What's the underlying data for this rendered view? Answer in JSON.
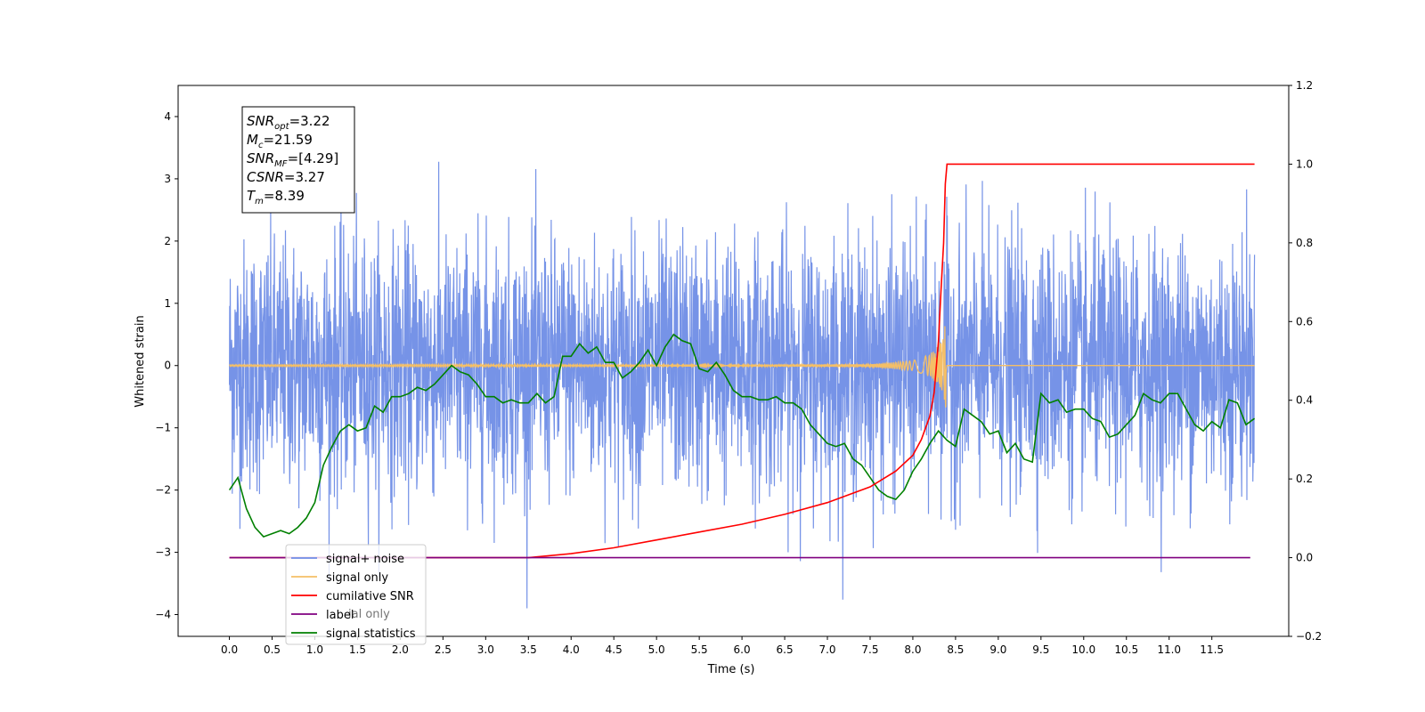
{
  "chart_data": {
    "type": "line",
    "xlabel": "Time (s)",
    "ylabel": "Whitened strain",
    "xlim": [
      -0.6,
      12.4
    ],
    "ylim": [
      -4.35,
      4.5
    ],
    "y2lim": [
      -0.2,
      1.2
    ],
    "x_ticks": [
      "0.0",
      "0.5",
      "1.0",
      "1.5",
      "2.0",
      "2.5",
      "3.0",
      "3.5",
      "4.0",
      "4.5",
      "5.0",
      "5.5",
      "6.0",
      "6.5",
      "7.0",
      "7.5",
      "8.0",
      "8.5",
      "9.0",
      "9.5",
      "10.0",
      "10.5",
      "11.0",
      "11.5"
    ],
    "y_ticks": [
      "4",
      "3",
      "2",
      "1",
      "0",
      "−1",
      "−2",
      "−3",
      "−4"
    ],
    "y2_ticks": [
      "1.2",
      "1.0",
      "0.8",
      "0.6",
      "0.4",
      "0.2",
      "0.0",
      "−0.2"
    ],
    "grid": false,
    "legend_position": "lower-left",
    "series": [
      {
        "name": "signal+ noise",
        "color": "#6f8de6",
        "axis": "left",
        "note_data": "dense whitened noise, std ~1, clipped range about -3.9 to 4.1, t from 0 to 12"
      },
      {
        "name": "signal only",
        "color": "#f5bf66",
        "axis": "left",
        "x": [
          0,
          7.5,
          8.0,
          8.2,
          8.3,
          8.36,
          8.39,
          8.4,
          12
        ],
        "envelope": [
          0.01,
          0.02,
          0.08,
          0.18,
          0.32,
          0.55,
          0.72,
          0.0,
          0.0
        ]
      },
      {
        "name": "cumilative SNR",
        "color": "#ff0000",
        "axis": "right",
        "x": [
          0,
          3.5,
          4.0,
          4.5,
          5.0,
          5.5,
          6.0,
          6.5,
          7.0,
          7.5,
          7.8,
          8.0,
          8.1,
          8.2,
          8.25,
          8.3,
          8.33,
          8.36,
          8.38,
          8.4,
          12.0
        ],
        "y": [
          0.0,
          0.0,
          0.01,
          0.025,
          0.045,
          0.065,
          0.085,
          0.11,
          0.14,
          0.18,
          0.22,
          0.26,
          0.3,
          0.36,
          0.42,
          0.55,
          0.68,
          0.8,
          0.95,
          1.0,
          1.0
        ]
      },
      {
        "name": "label",
        "color": "#800080",
        "axis": "right",
        "x": [
          0,
          11.95
        ],
        "y": [
          0.0,
          0.0
        ]
      },
      {
        "name": "signal statistics",
        "color": "#008000",
        "axis": "left",
        "x": [
          0.0,
          0.1,
          0.2,
          0.3,
          0.4,
          0.5,
          0.6,
          0.7,
          0.8,
          0.9,
          1.0,
          1.1,
          1.2,
          1.3,
          1.4,
          1.5,
          1.6,
          1.7,
          1.8,
          1.9,
          2.0,
          2.1,
          2.2,
          2.3,
          2.4,
          2.5,
          2.6,
          2.7,
          2.8,
          2.9,
          3.0,
          3.1,
          3.2,
          3.3,
          3.4,
          3.5,
          3.6,
          3.7,
          3.8,
          3.9,
          4.0,
          4.1,
          4.2,
          4.3,
          4.4,
          4.5,
          4.6,
          4.7,
          4.8,
          4.9,
          5.0,
          5.1,
          5.2,
          5.3,
          5.4,
          5.5,
          5.6,
          5.7,
          5.8,
          5.9,
          6.0,
          6.1,
          6.2,
          6.3,
          6.4,
          6.5,
          6.6,
          6.7,
          6.8,
          6.9,
          7.0,
          7.1,
          7.2,
          7.3,
          7.4,
          7.5,
          7.6,
          7.7,
          7.8,
          7.9,
          8.0,
          8.1,
          8.2,
          8.3,
          8.4,
          8.5,
          8.6,
          8.7,
          8.8,
          8.9,
          9.0,
          9.1,
          9.2,
          9.3,
          9.4,
          9.5,
          9.6,
          9.7,
          9.8,
          9.9,
          10.0,
          10.1,
          10.2,
          10.3,
          10.4,
          10.5,
          10.6,
          10.7,
          10.8,
          10.9,
          11.0,
          11.1,
          11.2,
          11.3,
          11.4,
          11.5,
          11.6,
          11.7,
          11.8,
          11.9,
          12.0
        ],
        "y": [
          -2.0,
          -1.8,
          -2.3,
          -2.6,
          -2.75,
          -2.7,
          -2.65,
          -2.7,
          -2.6,
          -2.45,
          -2.2,
          -1.6,
          -1.3,
          -1.05,
          -0.95,
          -1.05,
          -1.0,
          -0.65,
          -0.75,
          -0.5,
          -0.5,
          -0.45,
          -0.35,
          -0.4,
          -0.3,
          -0.15,
          0.0,
          -0.1,
          -0.15,
          -0.3,
          -0.5,
          -0.5,
          -0.6,
          -0.55,
          -0.6,
          -0.6,
          -0.45,
          -0.6,
          -0.5,
          0.15,
          0.15,
          0.35,
          0.2,
          0.3,
          0.05,
          0.05,
          -0.2,
          -0.1,
          0.05,
          0.25,
          0.0,
          0.3,
          0.5,
          0.4,
          0.35,
          -0.05,
          -0.1,
          0.05,
          -0.15,
          -0.4,
          -0.5,
          -0.5,
          -0.55,
          -0.55,
          -0.5,
          -0.6,
          -0.6,
          -0.7,
          -0.95,
          -1.1,
          -1.25,
          -1.3,
          -1.25,
          -1.5,
          -1.6,
          -1.8,
          -2.0,
          -2.1,
          -2.15,
          -2.0,
          -1.7,
          -1.5,
          -1.25,
          -1.05,
          -1.2,
          -1.3,
          -0.7,
          -0.8,
          -0.9,
          -1.1,
          -1.05,
          -1.4,
          -1.25,
          -1.5,
          -1.55,
          -0.45,
          -0.6,
          -0.55,
          -0.75,
          -0.7,
          -0.7,
          -0.85,
          -0.9,
          -1.15,
          -1.1,
          -0.95,
          -0.8,
          -0.45,
          -0.55,
          -0.6,
          -0.45,
          -0.45,
          -0.7,
          -0.95,
          -1.05,
          -0.9,
          -1.0,
          -0.55,
          -0.6,
          -0.95,
          -0.85
        ]
      }
    ],
    "annotation": {
      "lines": [
        {
          "base": "SNR",
          "sub": "opt",
          "value": "=3.22"
        },
        {
          "base": "M",
          "sub": "c",
          "value": "=21.59"
        },
        {
          "base": "SNR",
          "sub": "MF",
          "value": "=[4.29]"
        },
        {
          "base": "CSNR",
          "sub": "",
          "value": "=3.27"
        },
        {
          "base": "T",
          "sub": "m",
          "value": "=8.39"
        }
      ]
    },
    "legend_ghost_text": "ial only"
  }
}
